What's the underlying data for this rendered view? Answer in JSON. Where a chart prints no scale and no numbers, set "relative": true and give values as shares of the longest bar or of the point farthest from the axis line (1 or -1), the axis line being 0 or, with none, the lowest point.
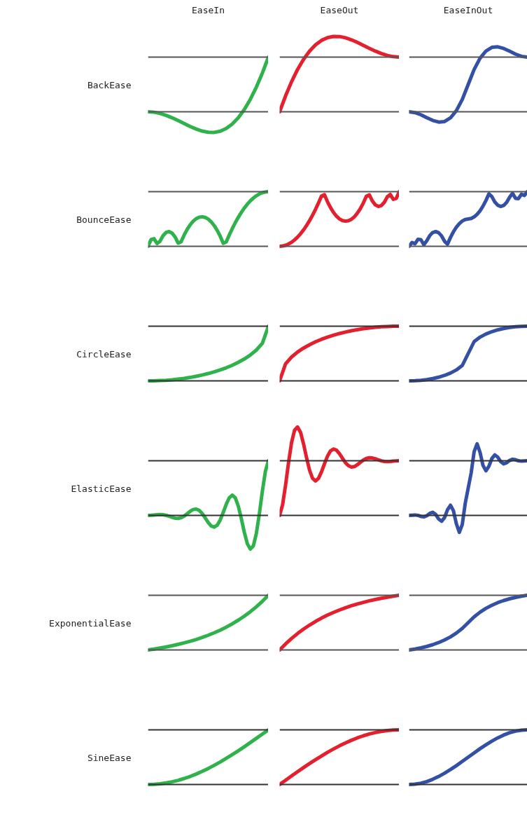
{
  "chart_data": [
    {
      "type": "line",
      "relative": true,
      "tick_labels": false,
      "title": "EaseIn",
      "ylabel": "BackEase",
      "categories": [
        null,
        null,
        null,
        null,
        null,
        null,
        null,
        null,
        null,
        null,
        null,
        null,
        null,
        null,
        null,
        null,
        null,
        null,
        null,
        null,
        null
      ],
      "series": [
        {
          "color": "#2fb24b",
          "values": [
            0,
            -0.008,
            -0.03,
            -0.065,
            -0.11,
            -0.161,
            -0.216,
            -0.269,
            -0.316,
            -0.353,
            -0.375,
            -0.377,
            -0.355,
            -0.305,
            -0.223,
            -0.108,
            0.042,
            0.228,
            0.451,
            0.709,
            1
          ]
        }
      ],
      "ref_lines": [
        {
          "axis": "y",
          "value": 0,
          "color": "#555555"
        },
        {
          "axis": "y",
          "value": 1,
          "color": "#555555"
        }
      ]
    },
    {
      "type": "line",
      "relative": true,
      "tick_labels": false,
      "title": "EaseOut",
      "categories": [
        null,
        null,
        null,
        null,
        null,
        null,
        null,
        null,
        null,
        null,
        null,
        null,
        null,
        null,
        null,
        null,
        null,
        null,
        null,
        null,
        null
      ],
      "series": [
        {
          "color": "#e5202e",
          "values": [
            0,
            0.211,
            0.399,
            0.561,
            0.696,
            0.805,
            0.888,
            0.948,
            0.984,
            1,
            0.999,
            0.983,
            0.956,
            0.922,
            0.883,
            0.843,
            0.806,
            0.774,
            0.748,
            0.732,
            0.726
          ]
        }
      ],
      "ref_lines": [
        {
          "axis": "y",
          "value": 0,
          "color": "#555555"
        },
        {
          "axis": "y",
          "value": 0.726,
          "color": "#555555"
        }
      ]
    },
    {
      "type": "line",
      "relative": true,
      "tick_labels": false,
      "title": "EaseInOut",
      "categories": [
        null,
        null,
        null,
        null,
        null,
        null,
        null,
        null,
        null,
        null,
        null,
        null,
        null,
        null,
        null,
        null,
        null,
        null,
        null,
        null,
        null
      ],
      "series": [
        {
          "color": "#3450a5",
          "values": [
            0,
            -0.013,
            -0.046,
            -0.091,
            -0.133,
            -0.158,
            -0.15,
            -0.094,
            0.018,
            0.19,
            0.421,
            0.652,
            0.824,
            0.936,
            0.992,
            1,
            0.975,
            0.933,
            0.888,
            0.854,
            0.842
          ]
        }
      ],
      "ref_lines": [
        {
          "axis": "y",
          "value": 0,
          "color": "#555555"
        },
        {
          "axis": "y",
          "value": 0.842,
          "color": "#555555"
        }
      ]
    },
    {
      "type": "line",
      "relative": true,
      "tick_labels": false,
      "ylabel": "BounceEase",
      "categories": [
        null,
        null,
        null,
        null,
        null,
        null,
        null,
        null,
        null,
        null,
        null,
        null,
        null,
        null,
        null,
        null,
        null,
        null,
        null,
        null,
        null,
        null,
        null,
        null,
        null,
        null,
        null,
        null,
        null,
        null,
        null,
        null,
        null,
        null,
        null,
        null,
        null,
        null,
        null,
        null,
        null
      ],
      "series": [
        {
          "color": "#2fb24b",
          "values": [
            0,
            0.122,
            0.139,
            0.051,
            0.094,
            0.195,
            0.254,
            0.27,
            0.242,
            0.171,
            0.058,
            0.083,
            0.206,
            0.31,
            0.394,
            0.459,
            0.505,
            0.532,
            0.54,
            0.528,
            0.498,
            0.448,
            0.379,
            0.29,
            0.183,
            0.056,
            0.08,
            0.207,
            0.324,
            0.432,
            0.531,
            0.62,
            0.7,
            0.77,
            0.831,
            0.883,
            0.925,
            0.958,
            0.981,
            0.995,
            1
          ]
        }
      ],
      "ref_lines": [
        {
          "axis": "y",
          "value": 0,
          "color": "#555555"
        },
        {
          "axis": "y",
          "value": 1,
          "color": "#555555"
        }
      ]
    },
    {
      "type": "line",
      "relative": true,
      "tick_labels": false,
      "categories": [
        null,
        null,
        null,
        null,
        null,
        null,
        null,
        null,
        null,
        null,
        null,
        null,
        null,
        null,
        null,
        null,
        null,
        null,
        null,
        null,
        null,
        null,
        null,
        null,
        null,
        null,
        null,
        null,
        null,
        null,
        null,
        null,
        null,
        null,
        null,
        null,
        null,
        null,
        null,
        null,
        null
      ],
      "series": [
        {
          "color": "#e5202e",
          "values": [
            0,
            0.005,
            0.019,
            0.042,
            0.075,
            0.117,
            0.169,
            0.23,
            0.3,
            0.38,
            0.469,
            0.568,
            0.676,
            0.793,
            0.92,
            0.944,
            0.817,
            0.71,
            0.621,
            0.552,
            0.502,
            0.472,
            0.46,
            0.468,
            0.495,
            0.541,
            0.606,
            0.69,
            0.794,
            0.917,
            0.942,
            0.829,
            0.758,
            0.73,
            0.746,
            0.805,
            0.906,
            0.949,
            0.861,
            0.878,
            1
          ]
        }
      ],
      "ref_lines": [
        {
          "axis": "y",
          "value": 0,
          "color": "#555555"
        },
        {
          "axis": "y",
          "value": 1,
          "color": "#555555"
        }
      ]
    },
    {
      "type": "line",
      "relative": true,
      "tick_labels": false,
      "categories": [
        null,
        null,
        null,
        null,
        null,
        null,
        null,
        null,
        null,
        null,
        null,
        null,
        null,
        null,
        null,
        null,
        null,
        null,
        null,
        null,
        null,
        null,
        null,
        null,
        null,
        null,
        null,
        null,
        null,
        null,
        null,
        null,
        null,
        null,
        null,
        null,
        null,
        null,
        null,
        null,
        null
      ],
      "series": [
        {
          "color": "#3450a5",
          "values": [
            0,
            0.07,
            0.047,
            0.127,
            0.121,
            0.029,
            0.103,
            0.197,
            0.253,
            0.27,
            0.249,
            0.19,
            0.092,
            0.04,
            0.162,
            0.266,
            0.35,
            0.416,
            0.463,
            0.491,
            0.5,
            0.51,
            0.538,
            0.585,
            0.65,
            0.735,
            0.838,
            0.96,
            0.909,
            0.811,
            0.751,
            0.73,
            0.748,
            0.803,
            0.897,
            0.971,
            0.879,
            0.873,
            0.953,
            0.931,
            1
          ]
        }
      ],
      "ref_lines": [
        {
          "axis": "y",
          "value": 0,
          "color": "#555555"
        },
        {
          "axis": "y",
          "value": 1,
          "color": "#555555"
        }
      ]
    },
    {
      "type": "line",
      "relative": true,
      "tick_labels": false,
      "ylabel": "CircleEase",
      "categories": [
        null,
        null,
        null,
        null,
        null,
        null,
        null,
        null,
        null,
        null,
        null,
        null,
        null,
        null,
        null,
        null,
        null,
        null,
        null,
        null,
        null
      ],
      "series": [
        {
          "color": "#2fb24b",
          "values": [
            0,
            0.001,
            0.005,
            0.011,
            0.02,
            0.032,
            0.046,
            0.063,
            0.084,
            0.107,
            0.134,
            0.165,
            0.2,
            0.24,
            0.286,
            0.339,
            0.4,
            0.473,
            0.564,
            0.688,
            1
          ]
        }
      ],
      "ref_lines": [
        {
          "axis": "y",
          "value": 0,
          "color": "#333333"
        },
        {
          "axis": "y",
          "value": 1,
          "color": "#333333"
        }
      ]
    },
    {
      "type": "line",
      "relative": true,
      "tick_labels": false,
      "categories": [
        null,
        null,
        null,
        null,
        null,
        null,
        null,
        null,
        null,
        null,
        null,
        null,
        null,
        null,
        null,
        null,
        null,
        null,
        null,
        null,
        null
      ],
      "series": [
        {
          "color": "#e5202e",
          "values": [
            0,
            0.312,
            0.436,
            0.527,
            0.6,
            0.661,
            0.714,
            0.76,
            0.8,
            0.835,
            0.866,
            0.893,
            0.917,
            0.937,
            0.954,
            0.968,
            0.98,
            0.989,
            0.995,
            0.999,
            1
          ]
        }
      ],
      "ref_lines": [
        {
          "axis": "y",
          "value": 0,
          "color": "#333333"
        },
        {
          "axis": "y",
          "value": 1,
          "color": "#333333"
        }
      ]
    },
    {
      "type": "line",
      "relative": true,
      "tick_labels": false,
      "categories": [
        null,
        null,
        null,
        null,
        null,
        null,
        null,
        null,
        null,
        null,
        null,
        null,
        null,
        null,
        null,
        null,
        null,
        null,
        null,
        null,
        null
      ],
      "series": [
        {
          "color": "#3450a5",
          "values": [
            0,
            0.003,
            0.01,
            0.023,
            0.042,
            0.067,
            0.1,
            0.143,
            0.2,
            0.282,
            0.5,
            0.718,
            0.8,
            0.857,
            0.9,
            0.933,
            0.958,
            0.977,
            0.99,
            0.998,
            1
          ]
        }
      ],
      "ref_lines": [
        {
          "axis": "y",
          "value": 0,
          "color": "#333333"
        },
        {
          "axis": "y",
          "value": 1,
          "color": "#333333"
        }
      ]
    },
    {
      "type": "line",
      "relative": true,
      "tick_labels": false,
      "ylabel": "ElasticEase",
      "categories": [
        null,
        null,
        null,
        null,
        null,
        null,
        null,
        null,
        null,
        null,
        null,
        null,
        null,
        null,
        null,
        null,
        null,
        null,
        null,
        null,
        null,
        null,
        null,
        null,
        null,
        null,
        null,
        null,
        null,
        null,
        null,
        null,
        null,
        null,
        null,
        null,
        null,
        null,
        null,
        null,
        null
      ],
      "series": [
        {
          "color": "#2fb24b",
          "values": [
            0,
            0.002,
            0.007,
            0.013,
            0.016,
            0.013,
            0.002,
            -0.015,
            -0.035,
            -0.05,
            -0.054,
            -0.042,
            -0.012,
            0.03,
            0.074,
            0.107,
            0.116,
            0.092,
            0.035,
            -0.045,
            -0.129,
            -0.193,
            -0.214,
            -0.178,
            -0.082,
            0.056,
            0.205,
            0.323,
            0.371,
            0.321,
            0.17,
            -0.057,
            -0.309,
            -0.518,
            -0.617,
            -0.558,
            -0.33,
            0.031,
            0.446,
            0.806,
            1
          ]
        }
      ],
      "ref_lines": [
        {
          "axis": "y",
          "value": 0,
          "color": "#333333"
        },
        {
          "axis": "y",
          "value": 1,
          "color": "#333333"
        }
      ]
    },
    {
      "type": "line",
      "relative": true,
      "tick_labels": false,
      "categories": [
        null,
        null,
        null,
        null,
        null,
        null,
        null,
        null,
        null,
        null,
        null,
        null,
        null,
        null,
        null,
        null,
        null,
        null,
        null,
        null,
        null,
        null,
        null,
        null,
        null,
        null,
        null,
        null,
        null,
        null,
        null,
        null,
        null,
        null,
        null,
        null,
        null,
        null,
        null,
        null,
        null
      ],
      "series": [
        {
          "color": "#e5202e",
          "values": [
            0,
            0.12,
            0.343,
            0.599,
            0.823,
            0.963,
            1,
            0.939,
            0.81,
            0.654,
            0.513,
            0.42,
            0.389,
            0.419,
            0.492,
            0.584,
            0.669,
            0.728,
            0.751,
            0.738,
            0.698,
            0.646,
            0.597,
            0.562,
            0.547,
            0.552,
            0.573,
            0.6,
            0.626,
            0.644,
            0.652,
            0.649,
            0.64,
            0.628,
            0.617,
            0.61,
            0.609,
            0.61,
            0.614,
            0.617,
            0.618
          ]
        }
      ],
      "ref_lines": [
        {
          "axis": "y",
          "value": 0,
          "color": "#333333"
        },
        {
          "axis": "y",
          "value": 0.618,
          "color": "#333333"
        }
      ]
    },
    {
      "type": "line",
      "relative": true,
      "tick_labels": false,
      "categories": [
        null,
        null,
        null,
        null,
        null,
        null,
        null,
        null,
        null,
        null,
        null,
        null,
        null,
        null,
        null,
        null,
        null,
        null,
        null,
        null,
        null,
        null,
        null,
        null,
        null,
        null,
        null,
        null,
        null,
        null,
        null,
        null,
        null,
        null,
        null,
        null,
        null,
        null,
        null,
        null,
        null
      ],
      "series": [
        {
          "color": "#3450a5",
          "values": [
            0,
            0.003,
            0.006,
            0.001,
            -0.014,
            -0.021,
            -0.005,
            0.028,
            0.044,
            0.014,
            -0.05,
            -0.082,
            -0.031,
            0.079,
            0.142,
            0.065,
            -0.118,
            -0.236,
            -0.126,
            0.17,
            0.382,
            0.594,
            0.89,
            1,
            0.882,
            0.699,
            0.623,
            0.686,
            0.795,
            0.846,
            0.814,
            0.751,
            0.72,
            0.736,
            0.768,
            0.785,
            0.778,
            0.763,
            0.758,
            0.762,
            0.764
          ]
        }
      ],
      "ref_lines": [
        {
          "axis": "y",
          "value": 0,
          "color": "#333333"
        },
        {
          "axis": "y",
          "value": 0.764,
          "color": "#333333"
        }
      ]
    },
    {
      "type": "line",
      "relative": true,
      "tick_labels": false,
      "ylabel": "ExponentialEase",
      "categories": [
        null,
        null,
        null,
        null,
        null,
        null,
        null,
        null,
        null,
        null,
        null,
        null,
        null,
        null,
        null,
        null,
        null,
        null,
        null,
        null,
        null
      ],
      "series": [
        {
          "color": "#2fb24b",
          "values": [
            0,
            0.016,
            0.035,
            0.055,
            0.077,
            0.102,
            0.129,
            0.159,
            0.192,
            0.229,
            0.269,
            0.314,
            0.363,
            0.418,
            0.478,
            0.545,
            0.619,
            0.7,
            0.79,
            0.89,
            1
          ]
        }
      ],
      "ref_lines": [
        {
          "axis": "y",
          "value": 0,
          "color": "#555555"
        },
        {
          "axis": "y",
          "value": 1,
          "color": "#555555"
        }
      ]
    },
    {
      "type": "line",
      "relative": true,
      "tick_labels": false,
      "categories": [
        null,
        null,
        null,
        null,
        null,
        null,
        null,
        null,
        null,
        null,
        null,
        null,
        null,
        null,
        null,
        null,
        null,
        null,
        null,
        null,
        null
      ],
      "series": [
        {
          "color": "#e5202e",
          "values": [
            0,
            0.11,
            0.21,
            0.3,
            0.381,
            0.455,
            0.522,
            0.582,
            0.637,
            0.686,
            0.731,
            0.772,
            0.808,
            0.841,
            0.871,
            0.899,
            0.923,
            0.945,
            0.965,
            0.984,
            1
          ]
        }
      ],
      "ref_lines": [
        {
          "axis": "y",
          "value": 0,
          "color": "#555555"
        },
        {
          "axis": "y",
          "value": 1,
          "color": "#555555"
        }
      ]
    },
    {
      "type": "line",
      "relative": true,
      "tick_labels": false,
      "categories": [
        null,
        null,
        null,
        null,
        null,
        null,
        null,
        null,
        null,
        null,
        null,
        null,
        null,
        null,
        null,
        null,
        null,
        null,
        null,
        null,
        null
      ],
      "series": [
        {
          "color": "#3450a5",
          "values": [
            0,
            0.017,
            0.039,
            0.064,
            0.096,
            0.135,
            0.182,
            0.239,
            0.309,
            0.395,
            0.5,
            0.605,
            0.691,
            0.761,
            0.818,
            0.866,
            0.904,
            0.936,
            0.962,
            0.983,
            1
          ]
        }
      ],
      "ref_lines": [
        {
          "axis": "y",
          "value": 0,
          "color": "#555555"
        },
        {
          "axis": "y",
          "value": 1,
          "color": "#555555"
        }
      ]
    },
    {
      "type": "line",
      "relative": true,
      "tick_labels": false,
      "ylabel": "SineEase",
      "categories": [
        null,
        null,
        null,
        null,
        null,
        null,
        null,
        null,
        null,
        null,
        null,
        null,
        null,
        null,
        null,
        null,
        null,
        null,
        null,
        null,
        null
      ],
      "series": [
        {
          "color": "#2fb24b",
          "values": [
            0,
            0.003,
            0.012,
            0.028,
            0.049,
            0.076,
            0.109,
            0.147,
            0.191,
            0.24,
            0.293,
            0.351,
            0.412,
            0.478,
            0.546,
            0.617,
            0.691,
            0.767,
            0.844,
            0.922,
            1
          ]
        }
      ],
      "ref_lines": [
        {
          "axis": "y",
          "value": 0,
          "color": "#333333"
        },
        {
          "axis": "y",
          "value": 1,
          "color": "#333333"
        }
      ]
    },
    {
      "type": "line",
      "relative": true,
      "tick_labels": false,
      "categories": [
        null,
        null,
        null,
        null,
        null,
        null,
        null,
        null,
        null,
        null,
        null,
        null,
        null,
        null,
        null,
        null,
        null,
        null,
        null,
        null,
        null
      ],
      "series": [
        {
          "color": "#e5202e",
          "values": [
            0,
            0.078,
            0.156,
            0.233,
            0.309,
            0.383,
            0.454,
            0.522,
            0.588,
            0.649,
            0.707,
            0.76,
            0.809,
            0.853,
            0.891,
            0.924,
            0.951,
            0.972,
            0.988,
            0.997,
            1
          ]
        }
      ],
      "ref_lines": [
        {
          "axis": "y",
          "value": 0,
          "color": "#333333"
        },
        {
          "axis": "y",
          "value": 1,
          "color": "#333333"
        }
      ]
    },
    {
      "type": "line",
      "relative": true,
      "tick_labels": false,
      "categories": [
        null,
        null,
        null,
        null,
        null,
        null,
        null,
        null,
        null,
        null,
        null,
        null,
        null,
        null,
        null,
        null,
        null,
        null,
        null,
        null,
        null
      ],
      "series": [
        {
          "color": "#3450a5",
          "values": [
            0,
            0.006,
            0.024,
            0.054,
            0.095,
            0.146,
            0.206,
            0.273,
            0.345,
            0.422,
            0.5,
            0.578,
            0.655,
            0.727,
            0.794,
            0.854,
            0.905,
            0.946,
            0.976,
            0.994,
            1
          ]
        }
      ],
      "ref_lines": [
        {
          "axis": "y",
          "value": 0,
          "color": "#333333"
        },
        {
          "axis": "y",
          "value": 1,
          "color": "#333333"
        }
      ]
    }
  ]
}
